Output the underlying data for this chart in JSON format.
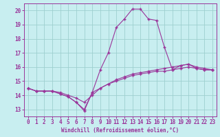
{
  "xlabel": "Windchill (Refroidissement éolien,°C)",
  "background_color": "#c8eef0",
  "grid_color": "#9dcfcf",
  "line_color": "#993399",
  "xlim": [
    -0.5,
    23.5
  ],
  "ylim": [
    12.5,
    20.5
  ],
  "xticks": [
    0,
    1,
    2,
    3,
    4,
    5,
    6,
    7,
    8,
    9,
    10,
    11,
    12,
    13,
    14,
    15,
    16,
    17,
    18,
    19,
    20,
    21,
    22,
    23
  ],
  "yticks": [
    13,
    14,
    15,
    16,
    17,
    18,
    19,
    20
  ],
  "series1_x": [
    0,
    1,
    2,
    3,
    4,
    5,
    6,
    7,
    8,
    9,
    10,
    11,
    12,
    13,
    14,
    15,
    16,
    17,
    18,
    19,
    20,
    21,
    22,
    23
  ],
  "series1_y": [
    14.5,
    14.3,
    14.3,
    14.3,
    14.1,
    13.9,
    13.5,
    12.9,
    14.2,
    15.8,
    17.0,
    18.8,
    19.4,
    20.1,
    20.1,
    19.4,
    19.3,
    17.4,
    15.8,
    16.1,
    16.2,
    15.9,
    15.8,
    15.8
  ],
  "series2_x": [
    0,
    1,
    2,
    3,
    4,
    5,
    6,
    7,
    8,
    9,
    10,
    11,
    12,
    13,
    14,
    15,
    16,
    17,
    18,
    19,
    20,
    21,
    22,
    23
  ],
  "series2_y": [
    14.5,
    14.3,
    14.3,
    14.3,
    14.1,
    13.9,
    13.5,
    13.0,
    14.2,
    14.5,
    14.8,
    15.0,
    15.2,
    15.4,
    15.5,
    15.6,
    15.7,
    15.7,
    15.8,
    15.9,
    16.0,
    15.9,
    15.8,
    15.8
  ],
  "series3_x": [
    0,
    1,
    2,
    3,
    4,
    5,
    6,
    7,
    8,
    9,
    10,
    11,
    12,
    13,
    14,
    15,
    16,
    17,
    18,
    19,
    20,
    21,
    22,
    23
  ],
  "series3_y": [
    14.5,
    14.3,
    14.3,
    14.3,
    14.2,
    14.0,
    13.8,
    13.5,
    14.0,
    14.5,
    14.8,
    15.1,
    15.3,
    15.5,
    15.6,
    15.7,
    15.8,
    15.9,
    16.0,
    16.1,
    16.2,
    16.0,
    15.9,
    15.8
  ],
  "xlabel_fontsize": 5.5,
  "tick_fontsize": 5.5
}
